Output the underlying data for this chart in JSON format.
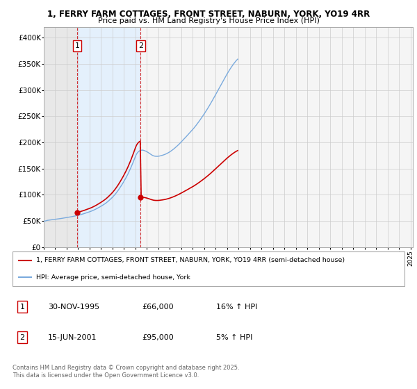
{
  "title_line1": "1, FERRY FARM COTTAGES, FRONT STREET, NABURN, YORK, YO19 4RR",
  "title_line2": "Price paid vs. HM Land Registry's House Price Index (HPI)",
  "ylim": [
    0,
    420000
  ],
  "yticks": [
    0,
    50000,
    100000,
    150000,
    200000,
    250000,
    300000,
    350000,
    400000
  ],
  "ytick_labels": [
    "£0",
    "£50K",
    "£100K",
    "£150K",
    "£200K",
    "£250K",
    "£300K",
    "£350K",
    "£400K"
  ],
  "sale1_date": 1995.917,
  "sale1_price": 66000,
  "sale2_date": 2001.458,
  "sale2_price": 95000,
  "sale_color": "#cc0000",
  "hpi_color": "#7aaadd",
  "grid_color": "#cccccc",
  "legend_line1": "1, FERRY FARM COTTAGES, FRONT STREET, NABURN, YORK, YO19 4RR (semi-detached house)",
  "legend_line2": "HPI: Average price, semi-detached house, York",
  "footnote": "Contains HM Land Registry data © Crown copyright and database right 2025.\nThis data is licensed under the Open Government Licence v3.0.",
  "table_rows": [
    {
      "label": "1",
      "date": "30-NOV-1995",
      "price": "£66,000",
      "hpi": "16% ↑ HPI"
    },
    {
      "label": "2",
      "date": "15-JUN-2001",
      "price": "£95,000",
      "hpi": "5% ↑ HPI"
    }
  ],
  "hpi_monthly": {
    "start_year": 1993.0,
    "step": 0.08333,
    "values": [
      49000,
      49500,
      50000,
      50500,
      51000,
      51200,
      51500,
      51800,
      52000,
      52200,
      52500,
      52800,
      53000,
      53200,
      53500,
      53800,
      54000,
      54200,
      54500,
      54800,
      55000,
      55300,
      55600,
      55900,
      56200,
      56500,
      56800,
      57100,
      57400,
      57800,
      58200,
      58600,
      59000,
      59400,
      59800,
      60200,
      60600,
      61100,
      61600,
      62100,
      62600,
      63100,
      63700,
      64300,
      64900,
      65500,
      66100,
      66700,
      67300,
      68000,
      68700,
      69500,
      70300,
      71100,
      72000,
      72900,
      73900,
      74900,
      75900,
      76900,
      78000,
      79100,
      80200,
      81400,
      82600,
      83900,
      85300,
      86800,
      88400,
      90000,
      91700,
      93400,
      95200,
      97100,
      99200,
      101400,
      103700,
      106100,
      108600,
      111200,
      114000,
      116800,
      119700,
      122600,
      125700,
      128800,
      132100,
      135500,
      139100,
      142900,
      146800,
      150800,
      155100,
      159500,
      164000,
      168600,
      173300,
      177200,
      180000,
      182000,
      183500,
      184500,
      185000,
      185200,
      185000,
      184500,
      183800,
      183000,
      182000,
      181000,
      179800,
      178500,
      177200,
      176000,
      175000,
      174200,
      173700,
      173400,
      173300,
      173300,
      173500,
      173800,
      174200,
      174700,
      175200,
      175800,
      176400,
      177100,
      177900,
      178800,
      179800,
      180900,
      182000,
      183200,
      184500,
      185900,
      187300,
      188800,
      190400,
      192000,
      193700,
      195400,
      197200,
      199100,
      201000,
      202900,
      204800,
      206700,
      208700,
      210700,
      212700,
      214700,
      216700,
      218700,
      220700,
      222700,
      224800,
      226900,
      229100,
      231400,
      233800,
      236200,
      238700,
      241200,
      243800,
      246400,
      249100,
      251800,
      254500,
      257300,
      260100,
      263000,
      266000,
      269000,
      272100,
      275200,
      278400,
      281600,
      284900,
      288200,
      291500,
      294800,
      298100,
      301400,
      304700,
      308000,
      311400,
      314700,
      318100,
      321400,
      324700,
      327900,
      331000,
      334000,
      337000,
      339900,
      342700,
      345400,
      348000,
      350500,
      352900,
      355100,
      357200,
      359000
    ]
  }
}
